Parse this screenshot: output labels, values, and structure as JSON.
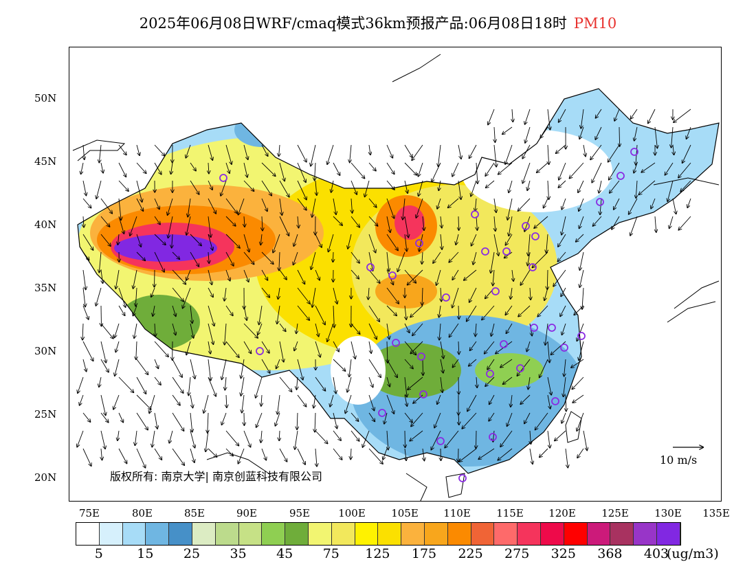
{
  "title": {
    "main": "2025年06月08日WRF/cmaq模式36km预报产品:06月08日18时",
    "pollutant": "PM10"
  },
  "lat_labels": [
    "50N",
    "45N",
    "40N",
    "35N",
    "30N",
    "25N",
    "20N"
  ],
  "lon_labels": [
    "75E",
    "80E",
    "85E",
    "90E",
    "95E",
    "100E",
    "105E",
    "110E",
    "115E",
    "120E",
    "125E",
    "130E",
    "135E"
  ],
  "copyright": "版权所有: 南京大学| 南京创蓝科技有限公司",
  "reference_vector": "10 m/s",
  "colorbar": {
    "colors": [
      "#ffffff",
      "#d6f0fc",
      "#a7dcf7",
      "#6fb6e2",
      "#4690c8",
      "#dcecc3",
      "#bcdb8c",
      "#c6e186",
      "#8fcf52",
      "#6fad3a",
      "#f2f571",
      "#f2e85c",
      "#fff200",
      "#fbe000",
      "#fbb23d",
      "#f8a61c",
      "#fb8a00",
      "#f06436",
      "#fe6a6a",
      "#f5345c",
      "#ee0a4a",
      "#ff0000",
      "#cc1a7a",
      "#a83260",
      "#9835c8",
      "#8128e2"
    ],
    "ticks": [
      "5",
      "15",
      "25",
      "35",
      "45",
      "75",
      "125",
      "175",
      "225",
      "275",
      "325",
      "368",
      "403"
    ],
    "unit": "(ug/m3)"
  }
}
